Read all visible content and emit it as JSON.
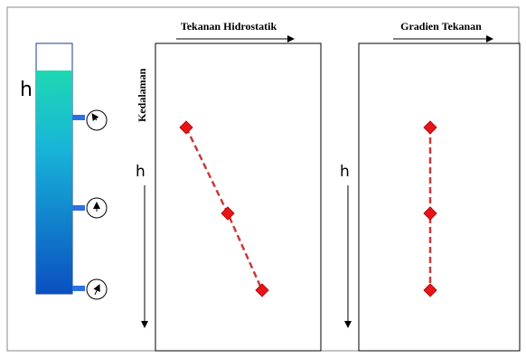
{
  "tank": {
    "label": "h"
  },
  "panels": [
    {
      "title": "Tekanan Hidrostatik",
      "axis_label": "Kedalaman",
      "depth_label": "h"
    },
    {
      "title": "Gradien Tekanan",
      "depth_label": "h"
    }
  ]
}
